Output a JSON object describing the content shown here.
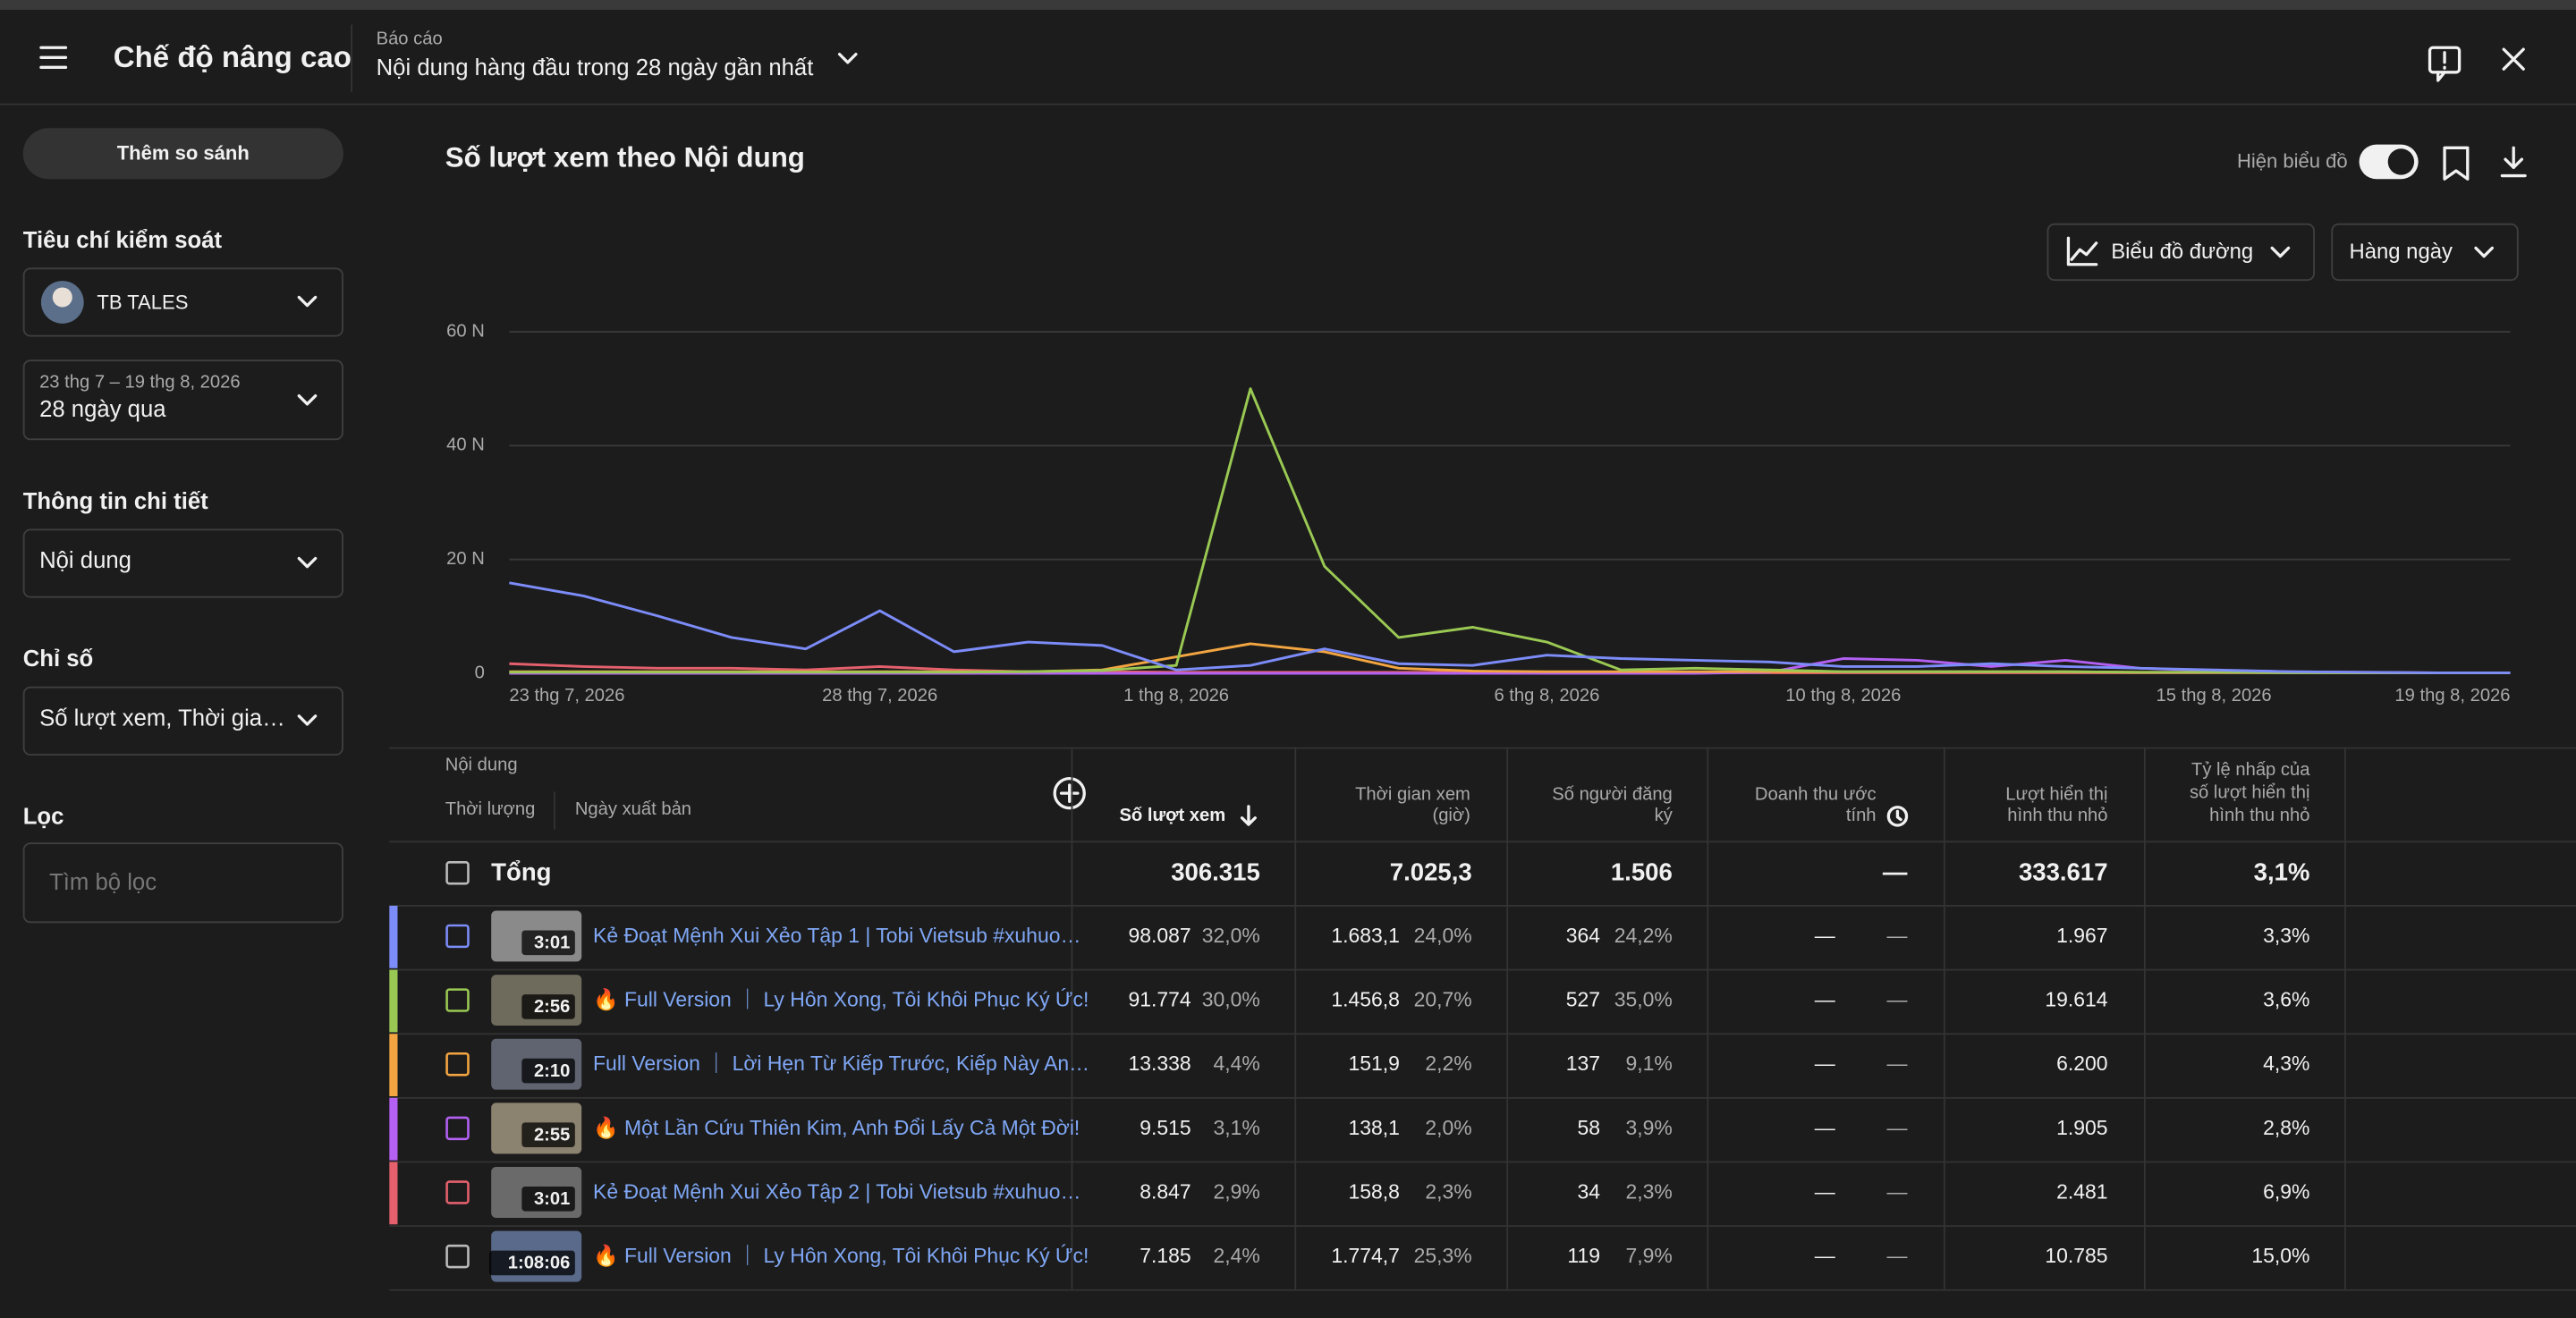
{
  "header": {
    "title": "Chế độ nâng cao",
    "report_label": "Báo cáo",
    "report_name": "Nội dung hàng đầu trong 28 ngày gần nhất"
  },
  "sidebar": {
    "compare_button": "Thêm so sánh",
    "controls_title": "Tiêu chí kiểm soát",
    "channel": "TB TALES",
    "date_range": "23 thg 7 – 19 thg 8, 2026",
    "date_preset": "28 ngày qua",
    "details_title": "Thông tin chi tiết",
    "details_value": "Nội dung",
    "metrics_title": "Chỉ số",
    "metrics_value": "Số lượt xem, Thời gia…",
    "filter_title": "Lọc",
    "filter_placeholder": "Tìm bộ lọc"
  },
  "chart_controls": {
    "show_chart": "Hiện biểu đồ",
    "chart_type": "Biểu đồ đường",
    "granularity": "Hàng ngày"
  },
  "chart_data": {
    "type": "line",
    "title": "Số lượt xem theo Nội dung",
    "categories": [
      "23 thg 7, 2026",
      null,
      null,
      null,
      null,
      "28 thg 7, 2026",
      null,
      null,
      null,
      "1 thg 8, 2026",
      null,
      null,
      null,
      null,
      "6 thg 8, 2026",
      null,
      null,
      null,
      "10 thg 8, 2026",
      null,
      null,
      null,
      null,
      "15 thg 8, 2026",
      null,
      null,
      null,
      "19 thg 8, 2026"
    ],
    "ylim": [
      0,
      60000
    ],
    "yticks": [
      0,
      {
        "value": 20000,
        "label": "20 N"
      },
      {
        "value": 40000,
        "label": "40 N"
      },
      {
        "value": 60000,
        "label": "60 N"
      }
    ],
    "grid": true,
    "series": [
      {
        "color": "#7c8cf8",
        "values": [
          15900,
          13600,
          10100,
          6300,
          4300,
          11000,
          3800,
          5500,
          4900,
          600,
          1400,
          4300,
          1700,
          1400,
          3200,
          2600,
          2300,
          2000,
          1200,
          1200,
          1700,
          1200,
          900,
          600,
          300,
          200,
          100,
          100
        ]
      },
      {
        "color": "#9ac953",
        "values": [
          200,
          200,
          200,
          200,
          200,
          200,
          200,
          300,
          500,
          1400,
          50000,
          18800,
          6300,
          8100,
          5500,
          600,
          900,
          600,
          300,
          300,
          300,
          300,
          200,
          200,
          100,
          100,
          100,
          100
        ]
      },
      {
        "color": "#f2a541",
        "values": [
          300,
          300,
          300,
          300,
          300,
          300,
          300,
          300,
          600,
          2900,
          5200,
          3800,
          900,
          400,
          300,
          300,
          300,
          300,
          300,
          300,
          300,
          300,
          200,
          200,
          200,
          100,
          100,
          100
        ]
      },
      {
        "color": "#b360f3",
        "values": [
          0,
          0,
          0,
          0,
          0,
          0,
          0,
          0,
          0,
          0,
          0,
          0,
          0,
          0,
          0,
          0,
          0,
          200,
          2600,
          2300,
          1200,
          2300,
          900,
          500,
          300,
          200,
          100,
          100
        ]
      },
      {
        "color": "#e4606d",
        "values": [
          1700,
          1200,
          900,
          900,
          600,
          1200,
          600,
          300,
          300,
          200,
          200,
          200,
          200,
          200,
          100,
          100,
          100,
          100,
          100,
          100,
          100,
          100,
          100,
          100,
          100,
          100,
          100,
          100
        ]
      }
    ]
  },
  "table": {
    "content_header": "Nội dung",
    "duration_header": "Thời lượng",
    "published_header": "Ngày xuất bản",
    "columns": [
      [
        "Số lượt xem"
      ],
      [
        "Thời gian xem",
        "(giờ)"
      ],
      [
        "Số người đăng",
        "ký"
      ],
      [
        "Doanh thu ước",
        "tính"
      ],
      [
        "Lượt hiển thị",
        "hình thu nhỏ"
      ],
      [
        "Tỷ lệ nhấp của",
        "số lượt hiển thị",
        "hình thu nhỏ"
      ]
    ],
    "total": {
      "label": "Tổng",
      "views": "306.315",
      "watch": "7.025,3",
      "subs": "1.506",
      "revenue": "—",
      "impressions": "333.617",
      "ctr": "3,1%"
    },
    "rows": [
      {
        "duration": "3:01",
        "title": "Kẻ Đoạt Mệnh Xui Xẻo Tập 1 | Tobi Vietsub #xuhuo…",
        "views": "98.087",
        "views_pct": "32,0%",
        "watch": "1.683,1",
        "watch_pct": "24,0%",
        "subs": "364",
        "subs_pct": "24,2%",
        "revenue": "—",
        "revenue_pct": "—",
        "impressions": "1.967",
        "ctr": "3,3%"
      },
      {
        "duration": "2:56",
        "title": "🔥 Full Version ｜ Ly Hôn Xong, Tôi Khôi Phục Ký Ức!",
        "views": "91.774",
        "views_pct": "30,0%",
        "watch": "1.456,8",
        "watch_pct": "20,7%",
        "subs": "527",
        "subs_pct": "35,0%",
        "revenue": "—",
        "revenue_pct": "—",
        "impressions": "19.614",
        "ctr": "3,6%"
      },
      {
        "duration": "2:10",
        "title": "Full Version ｜ Lời Hẹn Từ Kiếp Trước, Kiếp Này An…",
        "views": "13.338",
        "views_pct": "4,4%",
        "watch": "151,9",
        "watch_pct": "2,2%",
        "subs": "137",
        "subs_pct": "9,1%",
        "revenue": "—",
        "revenue_pct": "—",
        "impressions": "6.200",
        "ctr": "4,3%"
      },
      {
        "duration": "2:55",
        "title": "🔥 Một Lần Cứu Thiên Kim, Anh Đổi Lấy Cả Một Đời!",
        "views": "9.515",
        "views_pct": "3,1%",
        "watch": "138,1",
        "watch_pct": "2,0%",
        "subs": "58",
        "subs_pct": "3,9%",
        "revenue": "—",
        "revenue_pct": "—",
        "impressions": "1.905",
        "ctr": "2,8%"
      },
      {
        "duration": "3:01",
        "title": "Kẻ Đoạt Mệnh Xui Xẻo Tập 2 | Tobi Vietsub #xuhuo…",
        "views": "8.847",
        "views_pct": "2,9%",
        "watch": "158,8",
        "watch_pct": "2,3%",
        "subs": "34",
        "subs_pct": "2,3%",
        "revenue": "—",
        "revenue_pct": "—",
        "impressions": "2.481",
        "ctr": "6,9%"
      },
      {
        "duration": "1:08:06",
        "title": "🔥 Full Version ｜ Ly Hôn Xong, Tôi Khôi Phục Ký Ức!",
        "views": "7.185",
        "views_pct": "2,4%",
        "watch": "1.774,7",
        "watch_pct": "25,3%",
        "subs": "119",
        "subs_pct": "7,9%",
        "revenue": "—",
        "revenue_pct": "—",
        "impressions": "10.785",
        "ctr": "15,0%"
      }
    ]
  }
}
